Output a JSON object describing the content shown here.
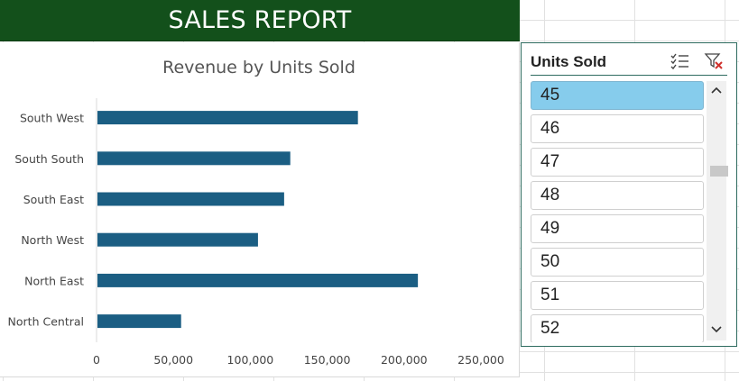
{
  "report": {
    "title": "SALES REPORT"
  },
  "colors": {
    "banner": "#13501b",
    "bar": "#1b5e83",
    "selected": "#86ccec",
    "slicer_border": "#2e6b5f"
  },
  "chart_data": {
    "type": "bar",
    "orientation": "horizontal",
    "title": "Revenue by Units Sold",
    "categories": [
      "South West",
      "South South",
      "South East",
      "North West",
      "North East",
      "North Central"
    ],
    "values": [
      170000,
      126000,
      122000,
      105000,
      209000,
      55000
    ],
    "xlim": [
      0,
      250000
    ],
    "xticks": [
      "0",
      "50,000",
      "100,000",
      "150,000",
      "200,000",
      "250,000"
    ],
    "tick_values": [
      0,
      50000,
      100000,
      150000,
      200000,
      250000
    ],
    "grid": false,
    "legend": "none"
  },
  "slicer": {
    "title": "Units Sold",
    "multi_select_icon": "multi-select-icon",
    "clear_filter_icon": "clear-filter-icon",
    "items": [
      "45",
      "46",
      "47",
      "48",
      "49",
      "50",
      "51",
      "52"
    ],
    "selected": "45"
  }
}
